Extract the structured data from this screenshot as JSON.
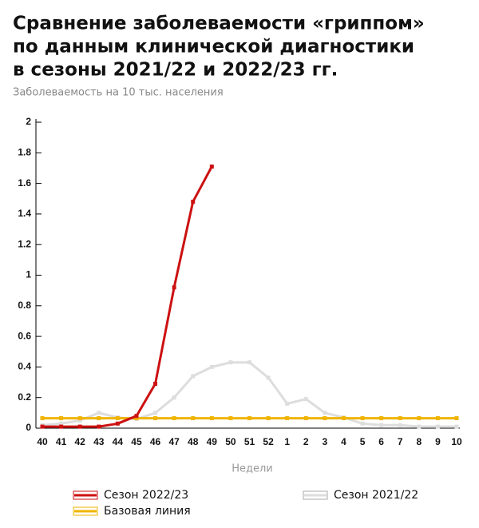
{
  "chart_data": {
    "type": "line",
    "title": [
      "Сравнение заболеваемости «гриппом»",
      "по данным клинической диагностики",
      "в сезоны 2021/22 и 2022/23 гг."
    ],
    "subtitle": "Заболеваемость на 10 тыс. населения",
    "x_label": "Недели",
    "categories": [
      "40",
      "41",
      "42",
      "43",
      "44",
      "45",
      "46",
      "47",
      "48",
      "49",
      "50",
      "51",
      "52",
      "1",
      "2",
      "3",
      "4",
      "5",
      "6",
      "7",
      "8",
      "9",
      "10"
    ],
    "series": [
      {
        "name": "Сезон 2022/23",
        "color": "#cc1111",
        "values": [
          0.01,
          0.01,
          0.01,
          0.01,
          0.03,
          0.08,
          0.29,
          0.92,
          1.48,
          1.71,
          null,
          null,
          null,
          null,
          null,
          null,
          null,
          null,
          null,
          null,
          null,
          null,
          null
        ]
      },
      {
        "name": "Сезон 2021/22",
        "color": "#dddddd",
        "values": [
          0.02,
          0.03,
          0.05,
          0.1,
          0.07,
          0.06,
          0.1,
          0.2,
          0.34,
          0.4,
          0.43,
          0.43,
          0.33,
          0.16,
          0.19,
          0.1,
          0.07,
          0.03,
          0.02,
          0.02,
          0.01,
          0.01,
          0.01
        ]
      },
      {
        "name": "Базовая линия",
        "color": "#f0b400",
        "values": [
          0.065,
          0.065,
          0.065,
          0.065,
          0.065,
          0.065,
          0.065,
          0.065,
          0.065,
          0.065,
          0.065,
          0.065,
          0.065,
          0.065,
          0.065,
          0.065,
          0.065,
          0.065,
          0.065,
          0.065,
          0.065,
          0.065,
          0.065
        ]
      }
    ],
    "ylim": [
      0,
      2
    ],
    "yticks": [
      0,
      0.2,
      0.4,
      0.6,
      0.8,
      1,
      1.2,
      1.4,
      1.6,
      1.8,
      2
    ]
  }
}
